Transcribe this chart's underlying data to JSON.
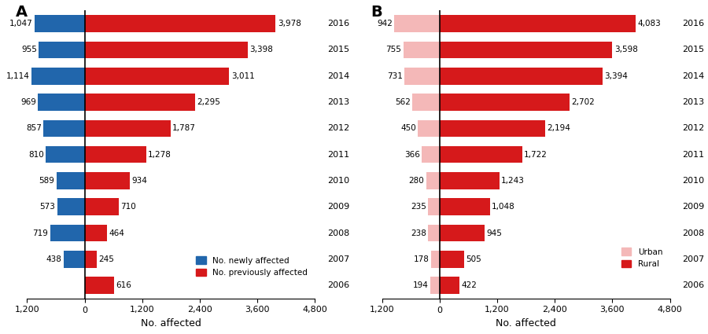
{
  "years": [
    2016,
    2015,
    2014,
    2013,
    2012,
    2011,
    2010,
    2009,
    2008,
    2007,
    2006
  ],
  "A_newly": [
    1047,
    955,
    1114,
    969,
    857,
    810,
    589,
    573,
    719,
    438,
    0
  ],
  "A_previously": [
    3978,
    3398,
    3011,
    2295,
    1787,
    1278,
    934,
    710,
    464,
    245,
    616
  ],
  "B_urban": [
    942,
    755,
    731,
    562,
    450,
    366,
    280,
    235,
    238,
    178,
    194
  ],
  "B_rural": [
    4083,
    3598,
    3394,
    2702,
    2194,
    1722,
    1243,
    1048,
    945,
    505,
    422
  ],
  "blue_color": "#2166ac",
  "red_color": "#d6191b",
  "light_pink_color": "#f4b8b8",
  "xlim_left": -1200,
  "xlim_right": 4800,
  "xticks": [
    -1200,
    0,
    1200,
    2400,
    3600,
    4800
  ],
  "xtick_labels": [
    "1,200",
    "0",
    "1,200",
    "2,400",
    "3,600",
    "4,800"
  ],
  "xlabel": "No. affected",
  "panel_A_label": "A",
  "panel_B_label": "B",
  "bar_height": 0.65,
  "figsize": [
    9.0,
    4.25
  ],
  "dpi": 100
}
